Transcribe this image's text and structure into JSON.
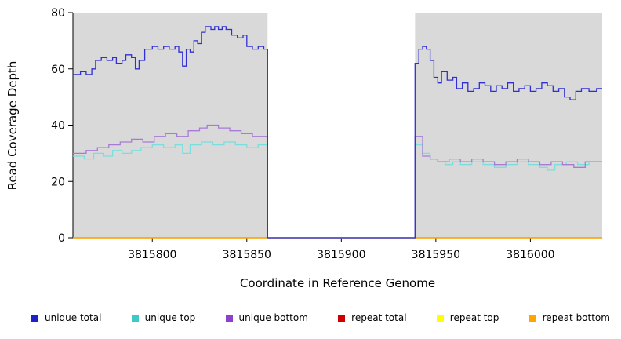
{
  "chart_data": {
    "type": "line",
    "step": true,
    "title": "",
    "xlabel": "Coordinate in Reference Genome",
    "ylabel": "Read Coverage Depth",
    "xlim": [
      3815758,
      3816038
    ],
    "ylim": [
      0,
      80
    ],
    "xticks": [
      3815800,
      3815850,
      3815900,
      3815950,
      3816000
    ],
    "yticks": [
      0,
      20,
      40,
      60,
      80
    ],
    "grid": false,
    "legend_position": "bottom",
    "panel_background": "#d9d9d9",
    "shaded_regions": [
      [
        3815758,
        3815861
      ],
      [
        3815939,
        3816038
      ]
    ],
    "gap_region": [
      3815861,
      3815939
    ],
    "series": [
      {
        "name": "repeat total",
        "color": "#cc0000",
        "points": [
          [
            3815758,
            0
          ],
          [
            3816038,
            0
          ]
        ]
      },
      {
        "name": "repeat top",
        "color": "#ffff00",
        "points": [
          [
            3815758,
            0
          ],
          [
            3816038,
            0
          ]
        ]
      },
      {
        "name": "repeat bottom",
        "color": "#ffa500",
        "points": [
          [
            3815758,
            0
          ],
          [
            3816038,
            0
          ]
        ]
      },
      {
        "name": "unique top",
        "color": "#7adede",
        "points": [
          [
            3815758,
            29
          ],
          [
            3815764,
            28
          ],
          [
            3815769,
            30
          ],
          [
            3815774,
            29
          ],
          [
            3815779,
            31
          ],
          [
            3815784,
            30
          ],
          [
            3815789,
            31
          ],
          [
            3815794,
            32
          ],
          [
            3815800,
            33
          ],
          [
            3815806,
            32
          ],
          [
            3815812,
            33
          ],
          [
            3815816,
            30
          ],
          [
            3815820,
            33
          ],
          [
            3815826,
            34
          ],
          [
            3815832,
            33
          ],
          [
            3815838,
            34
          ],
          [
            3815844,
            33
          ],
          [
            3815850,
            32
          ],
          [
            3815856,
            33
          ],
          [
            3815861,
            0
          ],
          [
            3815939,
            33
          ],
          [
            3815943,
            30
          ],
          [
            3815947,
            28
          ],
          [
            3815951,
            27
          ],
          [
            3815955,
            26
          ],
          [
            3815959,
            27
          ],
          [
            3815963,
            26
          ],
          [
            3815969,
            27
          ],
          [
            3815975,
            26
          ],
          [
            3815981,
            25
          ],
          [
            3815987,
            26
          ],
          [
            3815993,
            27
          ],
          [
            3815999,
            26
          ],
          [
            3816005,
            25
          ],
          [
            3816009,
            24
          ],
          [
            3816013,
            26
          ],
          [
            3816019,
            27
          ],
          [
            3816025,
            26
          ],
          [
            3816031,
            27
          ],
          [
            3816038,
            27
          ]
        ]
      },
      {
        "name": "unique bottom",
        "color": "#a77bd4",
        "points": [
          [
            3815758,
            30
          ],
          [
            3815765,
            31
          ],
          [
            3815771,
            32
          ],
          [
            3815777,
            33
          ],
          [
            3815783,
            34
          ],
          [
            3815789,
            35
          ],
          [
            3815795,
            34
          ],
          [
            3815801,
            36
          ],
          [
            3815807,
            37
          ],
          [
            3815813,
            36
          ],
          [
            3815819,
            38
          ],
          [
            3815825,
            39
          ],
          [
            3815829,
            40
          ],
          [
            3815835,
            39
          ],
          [
            3815841,
            38
          ],
          [
            3815847,
            37
          ],
          [
            3815853,
            36
          ],
          [
            3815861,
            0
          ],
          [
            3815939,
            36
          ],
          [
            3815943,
            29
          ],
          [
            3815947,
            28
          ],
          [
            3815951,
            27
          ],
          [
            3815957,
            28
          ],
          [
            3815963,
            27
          ],
          [
            3815969,
            28
          ],
          [
            3815975,
            27
          ],
          [
            3815981,
            26
          ],
          [
            3815987,
            27
          ],
          [
            3815993,
            28
          ],
          [
            3815999,
            27
          ],
          [
            3816005,
            26
          ],
          [
            3816011,
            27
          ],
          [
            3816017,
            26
          ],
          [
            3816023,
            25
          ],
          [
            3816029,
            27
          ],
          [
            3816038,
            27
          ]
        ]
      },
      {
        "name": "unique total",
        "color": "#2f2fd3",
        "points": [
          [
            3815758,
            58
          ],
          [
            3815762,
            59
          ],
          [
            3815765,
            58
          ],
          [
            3815768,
            60
          ],
          [
            3815770,
            63
          ],
          [
            3815773,
            64
          ],
          [
            3815776,
            63
          ],
          [
            3815779,
            64
          ],
          [
            3815781,
            62
          ],
          [
            3815784,
            63
          ],
          [
            3815786,
            65
          ],
          [
            3815789,
            64
          ],
          [
            3815791,
            60
          ],
          [
            3815793,
            63
          ],
          [
            3815796,
            67
          ],
          [
            3815800,
            68
          ],
          [
            3815803,
            67
          ],
          [
            3815806,
            68
          ],
          [
            3815809,
            67
          ],
          [
            3815812,
            68
          ],
          [
            3815814,
            66
          ],
          [
            3815816,
            61
          ],
          [
            3815818,
            67
          ],
          [
            3815820,
            66
          ],
          [
            3815822,
            70
          ],
          [
            3815824,
            69
          ],
          [
            3815826,
            73
          ],
          [
            3815828,
            75
          ],
          [
            3815831,
            74
          ],
          [
            3815833,
            75
          ],
          [
            3815835,
            74
          ],
          [
            3815837,
            75
          ],
          [
            3815839,
            74
          ],
          [
            3815842,
            72
          ],
          [
            3815845,
            71
          ],
          [
            3815848,
            72
          ],
          [
            3815850,
            68
          ],
          [
            3815853,
            67
          ],
          [
            3815856,
            68
          ],
          [
            3815859,
            67
          ],
          [
            3815861,
            0
          ],
          [
            3815939,
            62
          ],
          [
            3815941,
            67
          ],
          [
            3815943,
            68
          ],
          [
            3815945,
            67
          ],
          [
            3815947,
            63
          ],
          [
            3815949,
            57
          ],
          [
            3815951,
            55
          ],
          [
            3815953,
            59
          ],
          [
            3815956,
            56
          ],
          [
            3815959,
            57
          ],
          [
            3815961,
            53
          ],
          [
            3815964,
            55
          ],
          [
            3815967,
            52
          ],
          [
            3815970,
            53
          ],
          [
            3815973,
            55
          ],
          [
            3815976,
            54
          ],
          [
            3815979,
            52
          ],
          [
            3815982,
            54
          ],
          [
            3815985,
            53
          ],
          [
            3815988,
            55
          ],
          [
            3815991,
            52
          ],
          [
            3815994,
            53
          ],
          [
            3815997,
            54
          ],
          [
            3816000,
            52
          ],
          [
            3816003,
            53
          ],
          [
            3816006,
            55
          ],
          [
            3816009,
            54
          ],
          [
            3816012,
            52
          ],
          [
            3816015,
            53
          ],
          [
            3816018,
            50
          ],
          [
            3816021,
            49
          ],
          [
            3816024,
            52
          ],
          [
            3816027,
            53
          ],
          [
            3816031,
            52
          ],
          [
            3816035,
            53
          ],
          [
            3816038,
            53
          ]
        ]
      }
    ],
    "legend": [
      {
        "label": "unique total",
        "color": "#2020c8"
      },
      {
        "label": "unique top",
        "color": "#3fc8c8"
      },
      {
        "label": "unique bottom",
        "color": "#9040c8"
      },
      {
        "label": "repeat total",
        "color": "#cc0000"
      },
      {
        "label": "repeat top",
        "color": "#ffff00"
      },
      {
        "label": "repeat bottom",
        "color": "#ffa500"
      }
    ]
  }
}
